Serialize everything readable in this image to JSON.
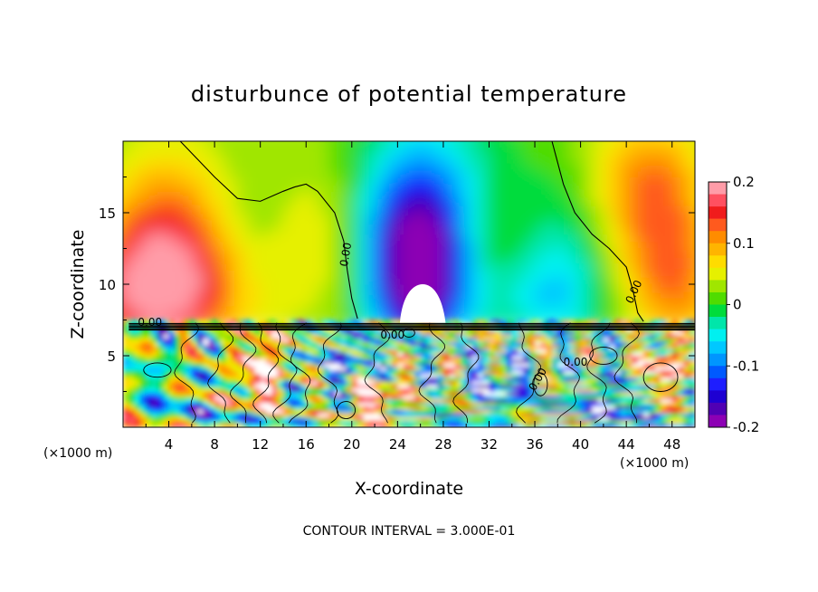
{
  "chart_data": {
    "type": "heatmap",
    "title": "disturbunce of potential temperature",
    "xlabel": "X-coordinate",
    "ylabel": "Z-coordinate",
    "x_unit": "(×1000 m)",
    "y_unit": "(×1000 m)",
    "xlim": [
      0,
      50
    ],
    "ylim": [
      0,
      20
    ],
    "x_ticks": [
      4,
      8,
      12,
      16,
      20,
      24,
      28,
      32,
      36,
      40,
      44,
      48
    ],
    "y_ticks": [
      5,
      10,
      15
    ],
    "colorbar": {
      "min": -0.2,
      "max": 0.2,
      "tick_values": [
        0.2,
        0.1,
        0,
        -0.1,
        -0.2
      ],
      "tick_labels": [
        "0.2",
        "0.1",
        "0",
        "-0.1",
        "-0.2"
      ],
      "levels": [
        {
          "lo": 0.18,
          "hi": 0.2,
          "color": "#ff9ca8"
        },
        {
          "lo": 0.16,
          "hi": 0.18,
          "color": "#ff5060"
        },
        {
          "lo": 0.14,
          "hi": 0.16,
          "color": "#f01c1c"
        },
        {
          "lo": 0.12,
          "hi": 0.14,
          "color": "#ff5a1e"
        },
        {
          "lo": 0.1,
          "hi": 0.12,
          "color": "#ff8c00"
        },
        {
          "lo": 0.08,
          "hi": 0.1,
          "color": "#ffb400"
        },
        {
          "lo": 0.06,
          "hi": 0.08,
          "color": "#ffdc00"
        },
        {
          "lo": 0.04,
          "hi": 0.06,
          "color": "#e6f000"
        },
        {
          "lo": 0.02,
          "hi": 0.04,
          "color": "#a0e600"
        },
        {
          "lo": 0.0,
          "hi": 0.02,
          "color": "#50dc00"
        },
        {
          "lo": -0.02,
          "hi": 0.0,
          "color": "#00dc3c"
        },
        {
          "lo": -0.04,
          "hi": -0.02,
          "color": "#00e6aa"
        },
        {
          "lo": -0.06,
          "hi": -0.04,
          "color": "#00f0f0"
        },
        {
          "lo": -0.08,
          "hi": -0.06,
          "color": "#00c8ff"
        },
        {
          "lo": -0.1,
          "hi": -0.08,
          "color": "#0096ff"
        },
        {
          "lo": -0.12,
          "hi": -0.1,
          "color": "#005aff"
        },
        {
          "lo": -0.14,
          "hi": -0.12,
          "color": "#1e1eff"
        },
        {
          "lo": -0.16,
          "hi": -0.14,
          "color": "#1e00d2"
        },
        {
          "lo": -0.18,
          "hi": -0.16,
          "color": "#5000b4"
        },
        {
          "lo": -0.2,
          "hi": -0.18,
          "color": "#8c00b4"
        }
      ]
    },
    "contour_labels": [
      "0.00",
      "0.00",
      "0.00",
      "0.00",
      "0.00",
      "0.00"
    ],
    "contour_interval_text": "CONTOUR INTERVAL = 3.000E-01",
    "inversion_height": 7.3,
    "features": [
      {
        "kind": "warm_anomaly",
        "x": 3,
        "z": 10,
        "value": 0.16
      },
      {
        "kind": "cold_anomaly",
        "x": 26,
        "z": 12,
        "value": -0.17
      },
      {
        "kind": "warm_cap",
        "x": 26,
        "z": 8.5,
        "value": 0.2
      },
      {
        "kind": "warm_anomaly",
        "x": 48,
        "z": 12,
        "value": 0.1
      },
      {
        "kind": "turbulent_layer",
        "z_range": [
          0,
          7.3
        ],
        "value_range": [
          -0.2,
          0.2
        ]
      }
    ]
  }
}
